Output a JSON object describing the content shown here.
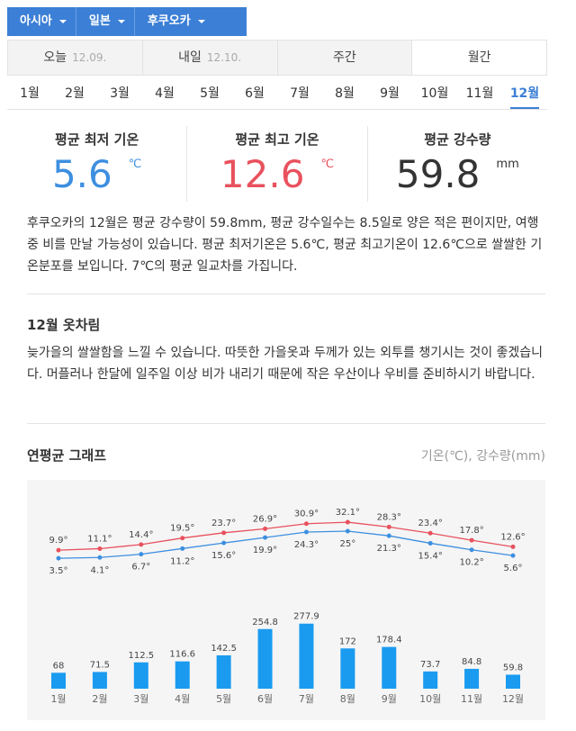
{
  "breadcrumb": [
    "아시아",
    "일본",
    "후쿠오카"
  ],
  "tabs": [
    {
      "label": "오늘",
      "date": "12.09."
    },
    {
      "label": "내일",
      "date": "12.10."
    },
    {
      "label": "주간"
    },
    {
      "label": "월간"
    }
  ],
  "months": [
    "1월",
    "2월",
    "3월",
    "4월",
    "5월",
    "6월",
    "7월",
    "8월",
    "9월",
    "10월",
    "11월",
    "12월"
  ],
  "stats": [
    {
      "label": "평균 최저 기온",
      "value": 5.6,
      "unit": "℃"
    },
    {
      "label": "평균 최고 기온",
      "value": 12.6,
      "unit": "℃"
    },
    {
      "label": "평균 강수량",
      "value": 59.8,
      "unit": "mm"
    }
  ],
  "summary": "후쿠오카의 12월은 평균 강수량이 59.8mm, 평균 강수일수는 8.5일로 양은 적은 편이지만, 여행 중 비를 만날 가능성이 있습니다. 평균 최저기온은 5.6℃, 평균 최고기온이 12.6℃으로 쌀쌀한 기온분포를 보입니다. 7℃의 평균 일교차를 가집니다.",
  "clothing": {
    "title": "12월 옷차림",
    "text": "늦가을의 쌀쌀함을 느낄 수 있습니다. 따뜻한 가을옷과 두께가 있는 외투를 챙기시는 것이 좋겠습니다. 머플러나 한달에 일주일 이상 비가 내리기 때문에 작은 우산이나 우비를 준비하시기 바랍니다."
  },
  "chart_data": {
    "type": "combo",
    "title": "연평균 그래프",
    "subtitle": "기온(℃), 강수량(mm)",
    "categories": [
      "1월",
      "2월",
      "3월",
      "4월",
      "5월",
      "6월",
      "7월",
      "8월",
      "9월",
      "10월",
      "11월",
      "12월"
    ],
    "series": [
      {
        "type": "line",
        "color": "#e8515d",
        "values": [
          9.9,
          11.1,
          14.4,
          19.5,
          23.7,
          26.9,
          30.9,
          32.1,
          28.3,
          23.4,
          17.8,
          12.6
        ],
        "value_labels": [
          "9.9°",
          "11.1°",
          "14.4°",
          "19.5°",
          "23.7°",
          "26.9°",
          "30.9°",
          "32.1°",
          "28.3°",
          "23.4°",
          "17.8°",
          "12.6°"
        ]
      },
      {
        "type": "line",
        "color": "#3d8fe0",
        "values": [
          3.5,
          4.1,
          6.7,
          11.2,
          15.6,
          19.9,
          24.3,
          25,
          21.3,
          15.4,
          10.2,
          5.6
        ],
        "value_labels": [
          "3.5°",
          "4.1°",
          "6.7°",
          "11.2°",
          "15.6°",
          "19.9°",
          "24.3°",
          "25°",
          "21.3°",
          "15.4°",
          "10.2°",
          "5.6°"
        ]
      },
      {
        "type": "bar",
        "color": "#1a9bf0",
        "values": [
          68,
          71.5,
          112.5,
          116.6,
          142.5,
          254.8,
          277.9,
          172,
          178.4,
          73.7,
          84.8,
          59.8
        ]
      }
    ]
  }
}
